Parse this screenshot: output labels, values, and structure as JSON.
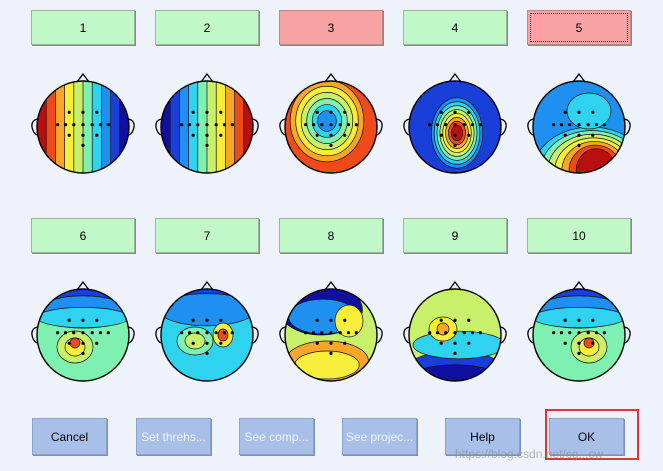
{
  "components": [
    {
      "label": "1",
      "status": "accept",
      "pattern": "lr"
    },
    {
      "label": "2",
      "status": "accept",
      "pattern": "rl"
    },
    {
      "label": "3",
      "status": "reject",
      "pattern": "ring"
    },
    {
      "label": "4",
      "status": "accept",
      "pattern": "center"
    },
    {
      "label": "5",
      "status": "reject",
      "pattern": "tb"
    },
    {
      "label": "6",
      "status": "accept",
      "pattern": "center-low"
    },
    {
      "label": "7",
      "status": "accept",
      "pattern": "double"
    },
    {
      "label": "8",
      "status": "accept",
      "pattern": "mixed"
    },
    {
      "label": "9",
      "status": "accept",
      "pattern": "band"
    },
    {
      "label": "10",
      "status": "accept",
      "pattern": "center-low2"
    }
  ],
  "actions": {
    "cancel": "Cancel",
    "threshold": "Set threhs...",
    "see_comp": "See comp...",
    "see_proj": "See projec...",
    "help": "Help",
    "ok": "OK"
  },
  "watermark": "https://blog.csdn.net/cg...cw",
  "colors": {
    "accept": "#c0f8c8",
    "reject": "#f8a3a3",
    "action": "#a8bfe8",
    "highlight": "#e23434"
  }
}
